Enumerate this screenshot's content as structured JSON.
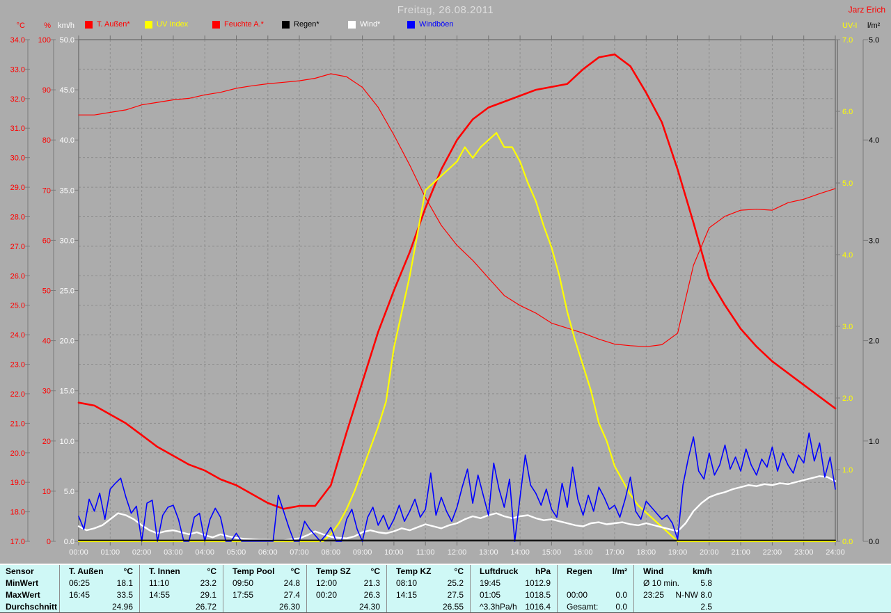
{
  "title": "Freitag, 26.08.2011",
  "watermark": "Jarz Erich",
  "legend": [
    {
      "label": "T. Außen*",
      "color": "#ff0000"
    },
    {
      "label": "UV Index",
      "color": "#ffff00"
    },
    {
      "label": "Feuchte A.*",
      "color": "#ff0000"
    },
    {
      "label": "Regen*",
      "color": "#000000"
    },
    {
      "label": "Wind*",
      "color": "#ffffff"
    },
    {
      "label": "Windböen",
      "color": "#0000ff"
    }
  ],
  "axes": {
    "x": {
      "labels": [
        "00:00",
        "01:00",
        "02:00",
        "03:00",
        "04:00",
        "05:00",
        "06:00",
        "07:00",
        "08:00",
        "09:00",
        "10:00",
        "11:00",
        "12:00",
        "13:00",
        "14:00",
        "15:00",
        "16:00",
        "17:00",
        "18:00",
        "19:00",
        "20:00",
        "21:00",
        "22:00",
        "23:00",
        "24:00"
      ]
    },
    "left": [
      {
        "id": "temp",
        "unit": "°C",
        "color": "#ff0000",
        "min": 17,
        "max": 34,
        "ticks": [
          "34.0",
          "33.0",
          "32.0",
          "31.0",
          "30.0",
          "29.0",
          "28.0",
          "27.0",
          "26.0",
          "25.0",
          "24.0",
          "23.0",
          "22.0",
          "21.0",
          "20.0",
          "19.0",
          "18.0",
          "17.0"
        ]
      },
      {
        "id": "humidity",
        "unit": "%",
        "color": "#ff0000",
        "min": 0,
        "max": 100,
        "ticks": [
          "100",
          "90",
          "80",
          "70",
          "60",
          "50",
          "40",
          "30",
          "20",
          "10",
          "0"
        ]
      },
      {
        "id": "wind",
        "unit": "km/h",
        "color": "#ffffff",
        "min": 0,
        "max": 50,
        "ticks": [
          "50.0",
          "45.0",
          "40.0",
          "35.0",
          "30.0",
          "25.0",
          "20.0",
          "15.0",
          "10.0",
          "5.0",
          "0.0"
        ]
      }
    ],
    "right": [
      {
        "id": "uv",
        "unit": "UV-I",
        "color": "#ffff00",
        "min": 0,
        "max": 7,
        "ticks": [
          "7.0",
          "6.0",
          "5.0",
          "4.0",
          "3.0",
          "2.0",
          "1.0",
          "0.0"
        ]
      },
      {
        "id": "rain",
        "unit": "l/m²",
        "color": "#000000",
        "min": 0,
        "max": 5,
        "ticks": [
          "5.0",
          "4.0",
          "3.0",
          "2.0",
          "1.0",
          "0.0"
        ]
      }
    ]
  },
  "chart_data": {
    "type": "line",
    "title": "Freitag, 26.08.2011",
    "x_unit": "hours",
    "x_range": [
      0,
      24
    ],
    "grid": "dashed hourly vertical, 1°C horizontal",
    "series": [
      {
        "name": "T. Außen",
        "axis": "temp",
        "color": "#ff0000",
        "width": 2.6,
        "start": 0,
        "step_min": 30,
        "values": [
          21.7,
          21.6,
          21.3,
          21.0,
          20.6,
          20.2,
          19.9,
          19.6,
          19.4,
          19.1,
          18.9,
          18.6,
          18.3,
          18.1,
          18.2,
          18.2,
          18.9,
          20.7,
          22.4,
          24.1,
          25.5,
          26.8,
          28.3,
          29.6,
          30.6,
          31.3,
          31.7,
          31.9,
          32.1,
          32.3,
          32.4,
          32.5,
          33.0,
          33.4,
          33.5,
          33.1,
          32.2,
          31.2,
          29.6,
          27.8,
          25.9,
          25.0,
          24.2,
          23.6,
          23.1,
          22.7,
          22.3,
          21.9,
          21.5
        ]
      },
      {
        "name": "Feuchte A.",
        "axis": "humidity",
        "color": "#ff0000",
        "width": 1.2,
        "start": 0,
        "step_min": 30,
        "values": [
          85.0,
          85.0,
          85.5,
          86.0,
          87.0,
          87.5,
          88.0,
          88.3,
          89.0,
          89.5,
          90.3,
          90.8,
          91.2,
          91.5,
          91.8,
          92.3,
          93.2,
          92.6,
          90.5,
          86.5,
          81.0,
          75.0,
          68.5,
          63.0,
          59.0,
          56.0,
          52.5,
          49.0,
          47.0,
          45.5,
          43.5,
          42.5,
          41.5,
          40.3,
          39.3,
          39.0,
          38.8,
          39.2,
          41.5,
          55.0,
          62.5,
          64.8,
          66.0,
          66.2,
          66.0,
          67.5,
          68.2,
          69.3,
          70.3
        ]
      },
      {
        "name": "UV Index",
        "axis": "uv",
        "color": "#ffff00",
        "width": 2.2,
        "start": 0,
        "step_min": 15,
        "values": [
          0,
          0,
          0,
          0,
          0,
          0,
          0,
          0,
          0,
          0,
          0,
          0,
          0,
          0,
          0,
          0,
          0,
          0,
          0,
          0,
          0,
          0,
          0,
          0,
          0,
          0,
          0,
          0,
          0,
          0,
          0,
          0,
          0.1,
          0.25,
          0.45,
          0.7,
          1.0,
          1.3,
          1.6,
          1.95,
          2.7,
          3.2,
          3.7,
          4.3,
          4.9,
          5.0,
          5.1,
          5.2,
          5.3,
          5.5,
          5.35,
          5.5,
          5.6,
          5.7,
          5.5,
          5.5,
          5.3,
          5.0,
          4.75,
          4.4,
          4.1,
          3.7,
          3.2,
          2.8,
          2.45,
          2.1,
          1.65,
          1.4,
          1.05,
          0.85,
          0.65,
          0.5,
          0.4,
          0.3,
          0.2,
          0.1,
          0,
          0,
          0,
          0,
          0,
          0,
          0,
          0,
          0,
          0,
          0,
          0,
          0,
          0,
          0,
          0,
          0,
          0,
          0,
          0,
          0
        ]
      },
      {
        "name": "Wind",
        "axis": "wind",
        "color": "#ffffff",
        "width": 2.4,
        "start": 0,
        "step_min": 15,
        "values": [
          1.5,
          1.1,
          1.3,
          1.6,
          2.2,
          2.8,
          2.6,
          2.2,
          1.6,
          1.1,
          0.8,
          1.0,
          1.1,
          0.9,
          0.7,
          0.9,
          0.6,
          0.4,
          0.7,
          0.5,
          0.35,
          0.25,
          0.2,
          0.15,
          0.15,
          0.1,
          0.1,
          0.2,
          0.3,
          0.6,
          1.0,
          0.7,
          0.45,
          0.35,
          0.3,
          0.5,
          0.9,
          1.1,
          0.9,
          0.8,
          1.0,
          1.3,
          1.1,
          1.4,
          1.7,
          1.5,
          1.3,
          1.6,
          1.8,
          2.2,
          2.5,
          2.3,
          2.6,
          2.8,
          2.5,
          2.3,
          2.5,
          2.6,
          2.3,
          2.1,
          2.2,
          2.0,
          1.8,
          1.6,
          1.5,
          1.8,
          1.9,
          1.7,
          1.8,
          1.9,
          1.7,
          1.6,
          1.8,
          1.6,
          1.4,
          1.2,
          1.0,
          1.8,
          3.0,
          3.8,
          4.4,
          4.7,
          4.9,
          5.2,
          5.4,
          5.6,
          5.5,
          5.7,
          5.6,
          5.8,
          5.7,
          5.9,
          6.1,
          6.3,
          6.5,
          6.4,
          6.0
        ]
      },
      {
        "name": "Windböen",
        "axis": "wind",
        "color": "#0000ff",
        "width": 1.6,
        "start": 0,
        "step_min": 10,
        "values": [
          2.5,
          1.2,
          4.2,
          3.0,
          4.8,
          2.2,
          5.2,
          5.8,
          6.3,
          4.4,
          2.8,
          3.5,
          0.0,
          3.8,
          4.1,
          0.0,
          2.6,
          3.4,
          3.6,
          2.2,
          0.0,
          0.0,
          2.4,
          2.8,
          0.0,
          2.2,
          3.3,
          2.4,
          0.0,
          0.0,
          0.8,
          0.0,
          0.0,
          0.0,
          0.0,
          0.0,
          0.0,
          0.0,
          4.6,
          3.0,
          1.4,
          0.0,
          0.0,
          2.0,
          1.2,
          0.6,
          0.0,
          0.6,
          1.4,
          0.0,
          0.0,
          2.2,
          3.2,
          1.2,
          0.0,
          2.4,
          3.4,
          1.6,
          2.6,
          1.2,
          2.2,
          3.6,
          2.0,
          3.0,
          4.2,
          2.4,
          3.2,
          6.8,
          2.6,
          4.4,
          3.0,
          2.0,
          3.4,
          5.4,
          7.2,
          3.8,
          6.6,
          4.6,
          2.6,
          7.8,
          5.2,
          3.4,
          6.2,
          0.0,
          4.4,
          8.6,
          5.6,
          4.8,
          3.6,
          5.2,
          3.2,
          2.4,
          5.8,
          3.4,
          7.4,
          4.2,
          2.6,
          4.6,
          3.0,
          5.4,
          4.4,
          3.2,
          3.6,
          2.4,
          4.2,
          6.4,
          3.0,
          2.2,
          4.0,
          3.4,
          2.8,
          2.2,
          2.6,
          1.8,
          0.2,
          5.6,
          8.2,
          10.4,
          7.0,
          6.2,
          8.8,
          6.6,
          7.6,
          9.6,
          7.2,
          8.4,
          7.0,
          9.2,
          7.6,
          6.6,
          8.2,
          7.4,
          9.4,
          7.0,
          8.8,
          7.6,
          6.8,
          8.6,
          7.8,
          10.8,
          8.0,
          9.8,
          6.4,
          8.4,
          5.2
        ]
      },
      {
        "name": "Regen",
        "axis": "rain",
        "color": "#000000",
        "width": 1.8,
        "start": 0,
        "step_min": 1440,
        "values": [
          0,
          0
        ]
      }
    ]
  },
  "table": {
    "row_labels": [
      "Sensor",
      "MinWert",
      "MaxWert",
      "Durchschnitt"
    ],
    "columns": [
      {
        "name": "T. Außen",
        "unit": "°C",
        "min": [
          "06:25",
          "18.1"
        ],
        "max": [
          "16:45",
          "33.5"
        ],
        "avg": [
          "",
          "24.96"
        ]
      },
      {
        "name": "T. Innen",
        "unit": "°C",
        "min": [
          "11:10",
          "23.2"
        ],
        "max": [
          "14:55",
          "29.1"
        ],
        "avg": [
          "",
          "26.72"
        ]
      },
      {
        "name": "Temp Pool",
        "unit": "°C",
        "min": [
          "09:50",
          "24.8"
        ],
        "max": [
          "17:55",
          "27.4"
        ],
        "avg": [
          "",
          "26.30"
        ]
      },
      {
        "name": "Temp SZ",
        "unit": "°C",
        "min": [
          "12:00",
          "21.3"
        ],
        "max": [
          "00:20",
          "26.3"
        ],
        "avg": [
          "",
          "24.30"
        ]
      },
      {
        "name": "Temp KZ",
        "unit": "°C",
        "min": [
          "08:10",
          "25.2"
        ],
        "max": [
          "14:15",
          "27.5"
        ],
        "avg": [
          "",
          "26.55"
        ]
      },
      {
        "name": "Luftdruck",
        "unit": "hPa",
        "min": [
          "19:45",
          "1012.9"
        ],
        "max": [
          "01:05",
          "1018.5"
        ],
        "avg": [
          "^3.3hPa/h",
          "1016.4"
        ]
      },
      {
        "name": "Regen",
        "unit": "l/m²",
        "min": [
          "",
          ""
        ],
        "max": [
          "00:00",
          "0.0"
        ],
        "avg": [
          "Gesamt:",
          "0.0"
        ]
      },
      {
        "name": "Wind",
        "unit": "km/h",
        "min": [
          "Ø 10 min.",
          "5.8"
        ],
        "max": [
          "23:25",
          "N-NW 8.0"
        ],
        "avg": [
          "",
          "2.5"
        ]
      }
    ]
  }
}
